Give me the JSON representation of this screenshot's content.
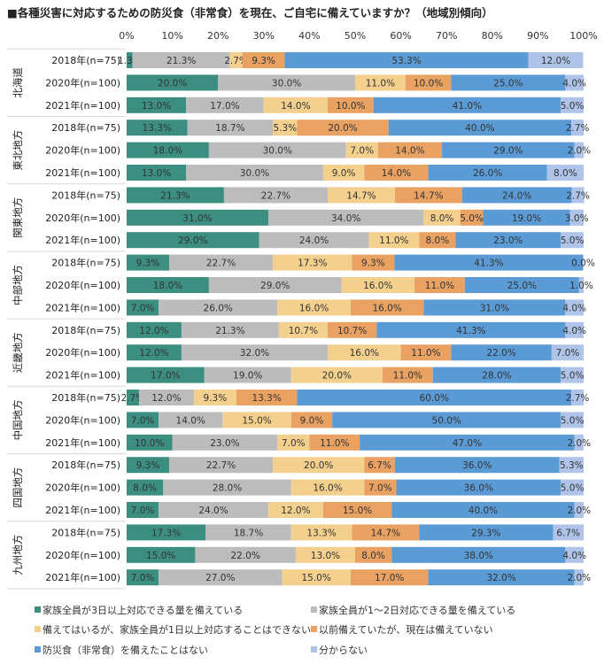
{
  "chart_data": {
    "type": "bar",
    "orientation": "horizontal",
    "stacked": true,
    "title": "■各種災害に対応するための防災食（非常食）を現在、ご自宅に備えていますか？（地域別傾向）",
    "xlim": [
      0,
      100
    ],
    "x_ticks": [
      "0%",
      "10%",
      "20%",
      "30%",
      "40%",
      "50%",
      "60%",
      "70%",
      "80%",
      "90%",
      "100%"
    ],
    "grid": false,
    "legend_position": "bottom",
    "series": [
      {
        "name": "家族全員が3日以上対応できる量を備えている",
        "color": "#3b8e80"
      },
      {
        "name": "家族全員が1～2日対応できる量を備えている",
        "color": "#bcbcbc"
      },
      {
        "name": "備えてはいるが、家族全員が1日以上対応することはできない",
        "color": "#f4d08e"
      },
      {
        "name": "以前備えていたが、現在は備えていない",
        "color": "#eaa263"
      },
      {
        "name": "防災食（非常食）を備えたことはない",
        "color": "#5b9bd5"
      },
      {
        "name": "分からない",
        "color": "#afc4e8"
      }
    ],
    "groups": [
      {
        "region": "北海道",
        "rows": [
          {
            "label": "2018年(n=75)",
            "values": [
              1.3,
              21.3,
              2.7,
              9.3,
              53.3,
              12.0
            ]
          },
          {
            "label": "2020年(n=100)",
            "values": [
              20.0,
              30.0,
              11.0,
              10.0,
              25.0,
              4.0
            ]
          },
          {
            "label": "2021年(n=100)",
            "values": [
              13.0,
              17.0,
              14.0,
              10.0,
              41.0,
              5.0
            ]
          }
        ]
      },
      {
        "region": "東北地方",
        "rows": [
          {
            "label": "2018年(n=75)",
            "values": [
              13.3,
              18.7,
              5.3,
              20.0,
              40.0,
              2.7
            ]
          },
          {
            "label": "2020年(n=100)",
            "values": [
              18.0,
              30.0,
              7.0,
              14.0,
              29.0,
              2.0
            ]
          },
          {
            "label": "2021年(n=100)",
            "values": [
              13.0,
              30.0,
              9.0,
              14.0,
              26.0,
              8.0
            ]
          }
        ]
      },
      {
        "region": "関東地方",
        "rows": [
          {
            "label": "2018年(n=75)",
            "values": [
              21.3,
              22.7,
              14.7,
              14.7,
              24.0,
              2.7
            ]
          },
          {
            "label": "2020年(n=100)",
            "values": [
              31.0,
              34.0,
              8.0,
              5.0,
              19.0,
              3.0
            ]
          },
          {
            "label": "2021年(n=100)",
            "values": [
              29.0,
              24.0,
              11.0,
              8.0,
              23.0,
              5.0
            ]
          }
        ]
      },
      {
        "region": "中部地方",
        "rows": [
          {
            "label": "2018年(n=75)",
            "values": [
              9.3,
              22.7,
              17.3,
              9.3,
              41.3,
              0.0
            ]
          },
          {
            "label": "2020年(n=100)",
            "values": [
              18.0,
              29.0,
              16.0,
              11.0,
              25.0,
              1.0
            ]
          },
          {
            "label": "2021年(n=100)",
            "values": [
              7.0,
              26.0,
              16.0,
              16.0,
              31.0,
              4.0
            ]
          }
        ]
      },
      {
        "region": "近畿地方",
        "rows": [
          {
            "label": "2018年(n=75)",
            "values": [
              12.0,
              21.3,
              10.7,
              10.7,
              41.3,
              4.0
            ]
          },
          {
            "label": "2020年(n=100)",
            "values": [
              12.0,
              32.0,
              16.0,
              11.0,
              22.0,
              7.0
            ]
          },
          {
            "label": "2021年(n=100)",
            "values": [
              17.0,
              19.0,
              20.0,
              11.0,
              28.0,
              5.0
            ]
          }
        ]
      },
      {
        "region": "中国地方",
        "rows": [
          {
            "label": "2018年(n=75)",
            "values": [
              2.7,
              12.0,
              9.3,
              13.3,
              60.0,
              2.7
            ]
          },
          {
            "label": "2020年(n=100)",
            "values": [
              7.0,
              14.0,
              15.0,
              9.0,
              50.0,
              5.0
            ]
          },
          {
            "label": "2021年(n=100)",
            "values": [
              10.0,
              23.0,
              7.0,
              11.0,
              47.0,
              2.0
            ]
          }
        ]
      },
      {
        "region": "四国地方",
        "rows": [
          {
            "label": "2018年(n=75)",
            "values": [
              9.3,
              22.7,
              20.0,
              6.7,
              36.0,
              5.3
            ]
          },
          {
            "label": "2020年(n=100)",
            "values": [
              8.0,
              28.0,
              16.0,
              7.0,
              36.0,
              5.0
            ]
          },
          {
            "label": "2021年(n=100)",
            "values": [
              7.0,
              24.0,
              12.0,
              15.0,
              40.0,
              2.0
            ]
          }
        ]
      },
      {
        "region": "九州地方",
        "rows": [
          {
            "label": "2018年(n=75)",
            "values": [
              17.3,
              18.7,
              13.3,
              14.7,
              29.3,
              6.7
            ]
          },
          {
            "label": "2020年(n=100)",
            "values": [
              15.0,
              22.0,
              13.0,
              8.0,
              38.0,
              4.0
            ]
          },
          {
            "label": "2021年(n=100)",
            "values": [
              7.0,
              27.0,
              15.0,
              17.0,
              32.0,
              2.0
            ]
          }
        ]
      }
    ]
  }
}
